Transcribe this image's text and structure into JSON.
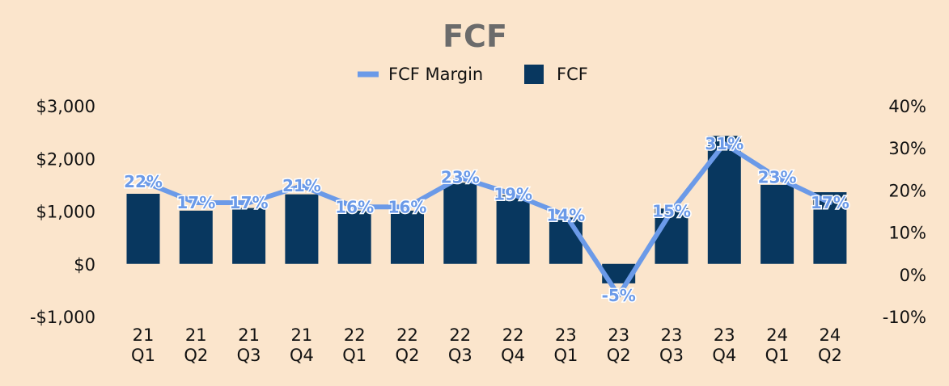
{
  "chart_data": {
    "type": "bar",
    "title": "FCF",
    "legend": [
      "FCF Margin",
      "FCF"
    ],
    "legend_position": "top",
    "categories": [
      [
        "21",
        "Q1"
      ],
      [
        "21",
        "Q2"
      ],
      [
        "21",
        "Q3"
      ],
      [
        "21",
        "Q4"
      ],
      [
        "22",
        "Q1"
      ],
      [
        "22",
        "Q2"
      ],
      [
        "22",
        "Q3"
      ],
      [
        "22",
        "Q4"
      ],
      [
        "23",
        "Q1"
      ],
      [
        "23",
        "Q2"
      ],
      [
        "23",
        "Q3"
      ],
      [
        "23",
        "Q4"
      ],
      [
        "24",
        "Q1"
      ],
      [
        "24",
        "Q2"
      ]
    ],
    "series": [
      {
        "name": "FCF",
        "type": "bar",
        "axis": "left",
        "values": [
          1330,
          1010,
          1060,
          1320,
          1010,
          1010,
          1540,
          1300,
          880,
          -370,
          1050,
          2430,
          1500,
          1360
        ]
      },
      {
        "name": "FCF Margin",
        "type": "line",
        "axis": "right",
        "values": [
          22,
          17,
          17,
          21,
          16,
          16,
          23,
          19,
          14,
          -5,
          15,
          31,
          23,
          17
        ],
        "labels": [
          "22%",
          "17%",
          "17%",
          "21%",
          "16%",
          "16%",
          "23%",
          "19%",
          "14%",
          "-5%",
          "15%",
          "31%",
          "23%",
          "17%"
        ]
      }
    ],
    "y_left": {
      "min": -1000,
      "max": 3000,
      "ticks": [
        "$3,000",
        "$2,000",
        "$1,000",
        "$0",
        "-$1,000"
      ],
      "tick_values": [
        3000,
        2000,
        1000,
        0,
        -1000
      ]
    },
    "y_right": {
      "min": -10,
      "max": 40,
      "ticks": [
        "40%",
        "30%",
        "20%",
        "10%",
        "0%",
        "-10%"
      ],
      "tick_values": [
        40,
        30,
        20,
        10,
        0,
        -10
      ]
    },
    "grid": false,
    "colors": {
      "bar": "#08375f",
      "line": "#6b9ae8",
      "background": "#fbe5cc"
    }
  }
}
